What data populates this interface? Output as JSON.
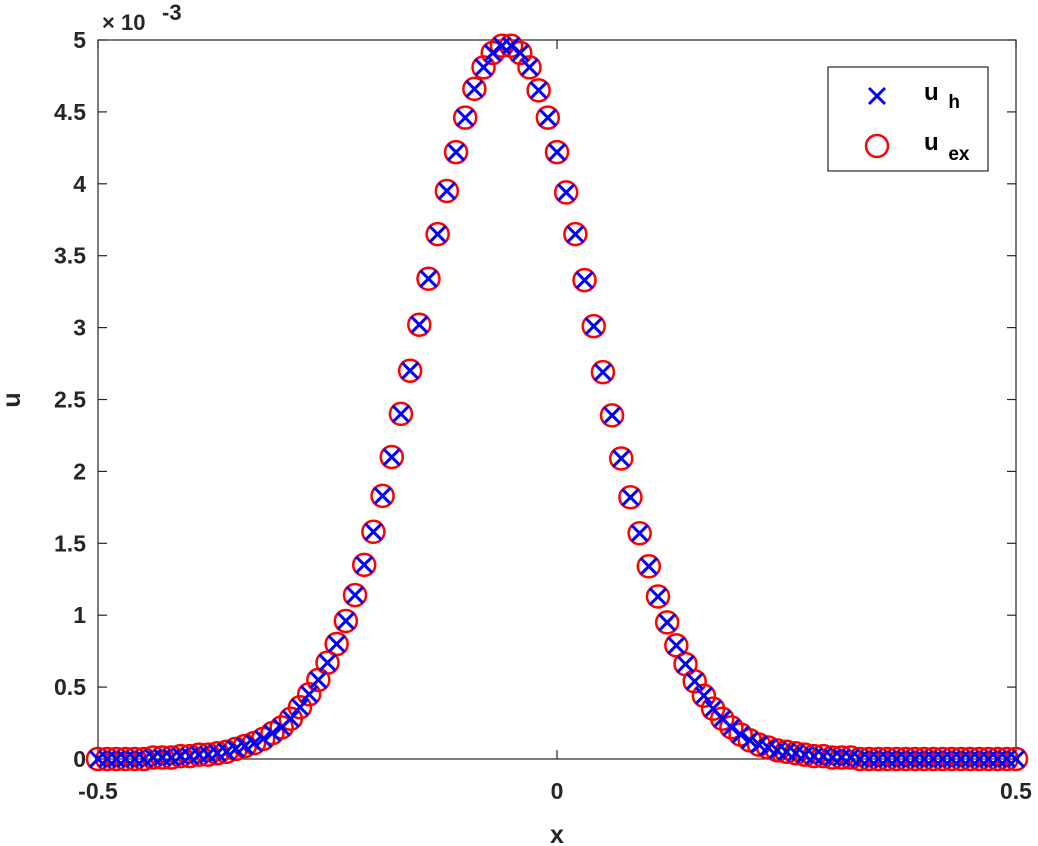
{
  "chart_data": {
    "type": "scatter",
    "xlabel": "x",
    "ylabel": "u",
    "xlim": [
      -0.5,
      0.5
    ],
    "ylim": [
      0,
      0.005
    ],
    "y_exponent_label": "× 10",
    "y_exponent_power": "-3",
    "xticks": [
      -0.5,
      0,
      0.5
    ],
    "xtick_labels": [
      "-0.5",
      "0",
      "0.5"
    ],
    "yticks": [
      0,
      0.0005,
      0.001,
      0.0015,
      0.002,
      0.0025,
      0.003,
      0.0035,
      0.004,
      0.0045,
      0.005
    ],
    "ytick_labels": [
      "0",
      "0.5",
      "1",
      "1.5",
      "2",
      "2.5",
      "3",
      "3.5",
      "4",
      "4.5",
      "5"
    ],
    "grid": false,
    "legend_position": "top-right",
    "x": [
      -0.5,
      -0.49,
      -0.48,
      -0.47,
      -0.46,
      -0.45,
      -0.44,
      -0.43,
      -0.42,
      -0.41,
      -0.4,
      -0.39,
      -0.38,
      -0.37,
      -0.36,
      -0.35,
      -0.34,
      -0.33,
      -0.32,
      -0.31,
      -0.3,
      -0.29,
      -0.28,
      -0.27,
      -0.26,
      -0.25,
      -0.24,
      -0.23,
      -0.22,
      -0.21,
      -0.2,
      -0.19,
      -0.18,
      -0.17,
      -0.16,
      -0.15,
      -0.14,
      -0.13,
      -0.12,
      -0.11,
      -0.1,
      -0.09,
      -0.08,
      -0.07,
      -0.06,
      -0.05,
      -0.04,
      -0.03,
      -0.02,
      -0.01,
      0,
      0.01,
      0.02,
      0.03,
      0.04,
      0.05,
      0.06,
      0.07,
      0.08,
      0.09,
      0.1,
      0.11,
      0.12,
      0.13,
      0.14,
      0.15,
      0.16,
      0.17,
      0.18,
      0.19,
      0.2,
      0.21,
      0.22,
      0.23,
      0.24,
      0.25,
      0.26,
      0.27,
      0.28,
      0.29,
      0.3,
      0.31,
      0.32,
      0.33,
      0.34,
      0.35,
      0.36,
      0.37,
      0.38,
      0.39,
      0.4,
      0.41,
      0.42,
      0.43,
      0.44,
      0.45,
      0.46,
      0.47,
      0.48,
      0.49,
      0.5
    ],
    "series": [
      {
        "name": "u_h",
        "marker": "x",
        "color": "#0000ff",
        "values": [
          0.0,
          0.0,
          0.0,
          0.0,
          0.0,
          0.0,
          1e-05,
          1e-05,
          1e-05,
          2e-05,
          2e-05,
          3e-05,
          3e-05,
          4e-05,
          5e-05,
          7e-05,
          9e-05,
          0.00011,
          0.00014,
          0.00018,
          0.00022,
          0.00028,
          0.00036,
          0.00045,
          0.00055,
          0.00067,
          0.0008,
          0.00096,
          0.00114,
          0.00135,
          0.00158,
          0.00183,
          0.0021,
          0.0024,
          0.0027,
          0.00302,
          0.00334,
          0.00365,
          0.00395,
          0.00422,
          0.00446,
          0.00466,
          0.00481,
          0.00491,
          0.00496,
          0.00496,
          0.00491,
          0.00481,
          0.00465,
          0.00446,
          0.00422,
          0.00394,
          0.00365,
          0.00333,
          0.00301,
          0.00269,
          0.00239,
          0.00209,
          0.00182,
          0.00157,
          0.00134,
          0.00113,
          0.00095,
          0.00079,
          0.00066,
          0.00054,
          0.00044,
          0.00035,
          0.00028,
          0.00022,
          0.00017,
          0.00013,
          0.0001,
          8e-05,
          6e-05,
          5e-05,
          4e-05,
          3e-05,
          2e-05,
          2e-05,
          1e-05,
          1e-05,
          1e-05,
          0.0,
          0.0,
          0.0,
          0.0,
          0.0,
          0.0,
          0.0,
          0.0,
          0.0,
          0.0,
          0.0,
          0.0,
          0.0,
          0.0,
          0.0,
          0.0,
          0.0,
          0.0
        ]
      },
      {
        "name": "u_ex",
        "marker": "o",
        "color": "#ff0000",
        "values": [
          0.0,
          0.0,
          0.0,
          0.0,
          0.0,
          0.0,
          1e-05,
          1e-05,
          1e-05,
          2e-05,
          2e-05,
          3e-05,
          3e-05,
          4e-05,
          5e-05,
          7e-05,
          9e-05,
          0.00011,
          0.00014,
          0.00018,
          0.00022,
          0.00028,
          0.00036,
          0.00045,
          0.00055,
          0.00067,
          0.0008,
          0.00096,
          0.00114,
          0.00135,
          0.00158,
          0.00183,
          0.0021,
          0.0024,
          0.0027,
          0.00302,
          0.00334,
          0.00365,
          0.00395,
          0.00422,
          0.00446,
          0.00466,
          0.00481,
          0.00491,
          0.00496,
          0.00496,
          0.00491,
          0.00481,
          0.00465,
          0.00446,
          0.00422,
          0.00394,
          0.00365,
          0.00333,
          0.00301,
          0.00269,
          0.00239,
          0.00209,
          0.00182,
          0.00157,
          0.00134,
          0.00113,
          0.00095,
          0.00079,
          0.00066,
          0.00054,
          0.00044,
          0.00035,
          0.00028,
          0.00022,
          0.00017,
          0.00013,
          0.0001,
          8e-05,
          6e-05,
          5e-05,
          4e-05,
          3e-05,
          2e-05,
          2e-05,
          1e-05,
          1e-05,
          1e-05,
          0.0,
          0.0,
          0.0,
          0.0,
          0.0,
          0.0,
          0.0,
          0.0,
          0.0,
          0.0,
          0.0,
          0.0,
          0.0,
          0.0,
          0.0,
          0.0,
          0.0,
          0.0
        ]
      }
    ],
    "legend": {
      "entries": [
        {
          "base": "u",
          "sub": "h"
        },
        {
          "base": "u",
          "sub": "ex"
        }
      ]
    }
  }
}
